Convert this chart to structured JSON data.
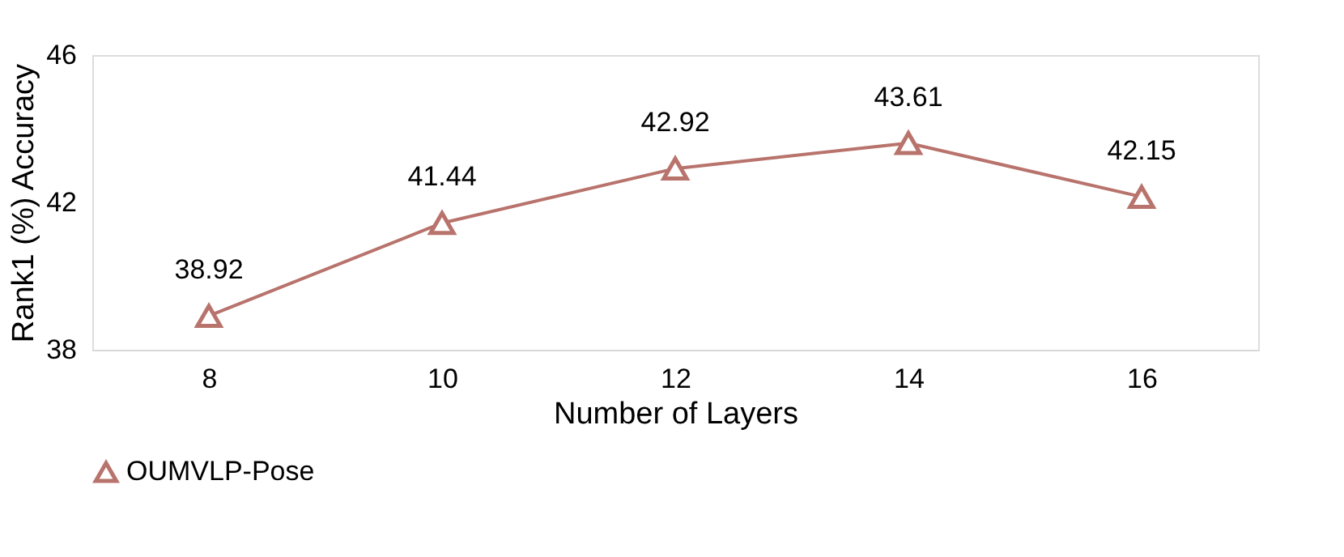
{
  "chart_data": {
    "type": "line",
    "xlabel": "Number of Layers",
    "ylabel": "Rank1 (%) Accuracy",
    "categories": [
      "8",
      "10",
      "12",
      "14",
      "16"
    ],
    "series": [
      {
        "name": "OUMVLP-Pose",
        "color": "#b8736c",
        "values": [
          38.92,
          41.44,
          42.92,
          43.61,
          42.15
        ]
      }
    ],
    "ylim": [
      38,
      46
    ],
    "yticks": [
      38,
      42,
      46
    ],
    "grid": false,
    "legend": "bottom",
    "marker": "triangle",
    "line_style": "solid",
    "data_labels": true
  }
}
